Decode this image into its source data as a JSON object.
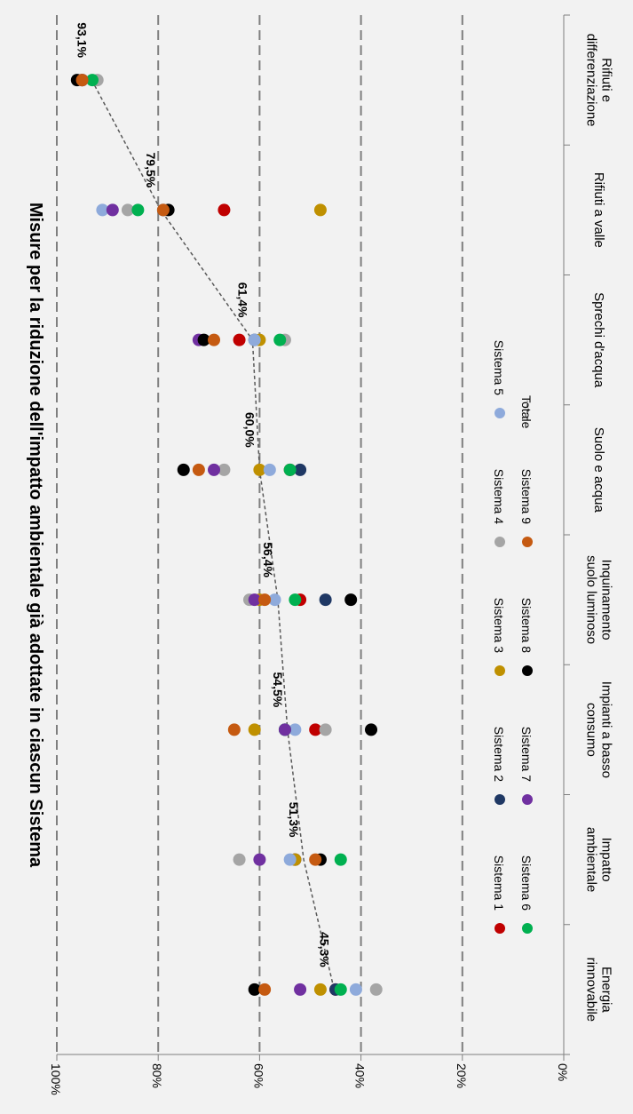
{
  "chart_data": {
    "type": "scatter",
    "title": "Misure per la riduzione dell'impatto ambientale già adottate in ciascun Sistema",
    "orientation": "rotated-90-clockwise",
    "ylim": [
      0,
      100
    ],
    "y_ticks": [
      "0%",
      "20%",
      "40%",
      "60%",
      "80%",
      "100%"
    ],
    "grid": true,
    "legend_position": "right",
    "categories": [
      [
        "Rifiuti e",
        "differenziazione"
      ],
      [
        "Rifiuti a valle"
      ],
      [
        "Sprechi d'acqua"
      ],
      [
        "Suolo e acqua"
      ],
      [
        "Inquinamento",
        "suolo luminoso"
      ],
      [
        "Impianti a basso",
        "consumo"
      ],
      [
        "Impatto",
        "ambientale"
      ],
      [
        "Energia",
        "rinnovabile"
      ]
    ],
    "series": [
      {
        "name": "Sistema 1",
        "color": "#c00000",
        "values": [
          95,
          67,
          64,
          54,
          52,
          49,
          53,
          45
        ]
      },
      {
        "name": "Sistema 2",
        "color": "#1f3864",
        "values": [
          95,
          79,
          61,
          52,
          47,
          55,
          53,
          45
        ]
      },
      {
        "name": "Sistema 3",
        "color": "#bf9000",
        "values": [
          95,
          48,
          60,
          60,
          60,
          61,
          53,
          48
        ]
      },
      {
        "name": "Sistema 4",
        "color": "#a5a5a5",
        "values": [
          92,
          86,
          55,
          67,
          62,
          47,
          64,
          37
        ]
      },
      {
        "name": "Sistema 5",
        "color": "#8eaadb",
        "values": [
          95,
          91,
          61,
          58,
          57,
          53,
          54,
          41
        ]
      },
      {
        "name": "Sistema 6",
        "color": "#00b050",
        "values": [
          93,
          84,
          56,
          54,
          53,
          55,
          44,
          44
        ]
      },
      {
        "name": "Sistema 7",
        "color": "#7030a0",
        "values": [
          95,
          89,
          72,
          69,
          61,
          55,
          60,
          52
        ]
      },
      {
        "name": "Sistema 8",
        "color": "#000000",
        "values": [
          96,
          78,
          71,
          75,
          42,
          38,
          48,
          61
        ]
      },
      {
        "name": "Sistema 9",
        "color": "#c55a11",
        "values": [
          95,
          79,
          69,
          72,
          59,
          65,
          49,
          59
        ]
      }
    ],
    "total": {
      "name": "Totale",
      "values": [
        93.1,
        79.5,
        61.4,
        60.0,
        56.4,
        54.5,
        51.3,
        45.3
      ],
      "labels": [
        "93,1%",
        "79,5%",
        "61,4%",
        "60,0%",
        "56,4%",
        "54,5%",
        "51,3%",
        "45,3%"
      ]
    },
    "legend": [
      [
        "Sistema 1",
        "Sistema 2",
        "Sistema 3",
        "Sistema 4",
        "Sistema 5"
      ],
      [
        "Sistema 6",
        "Sistema 7",
        "Sistema 8",
        "Sistema 9",
        "Totale"
      ]
    ]
  }
}
